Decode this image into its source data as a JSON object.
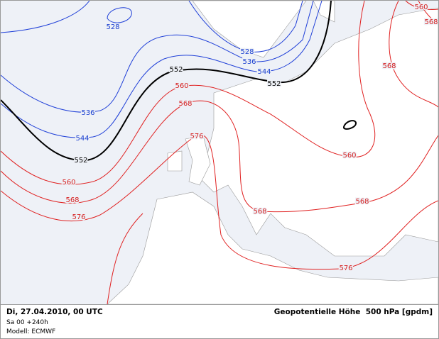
{
  "map": {
    "contour_labels": [
      "528",
      "528",
      "536",
      "544",
      "536",
      "544",
      "552",
      "552",
      "552",
      "560",
      "568",
      "568",
      "560",
      "568",
      "576",
      "560",
      "560",
      "568",
      "576",
      "568",
      "568",
      "576"
    ]
  },
  "footer": {
    "date": "Di, 27.04.2010, 00 UTC",
    "run": "Sa 00 +240h",
    "model": "Modell: ECMWF",
    "title": "Geopotentielle Höhe  500 hPa [gpdm]"
  }
}
